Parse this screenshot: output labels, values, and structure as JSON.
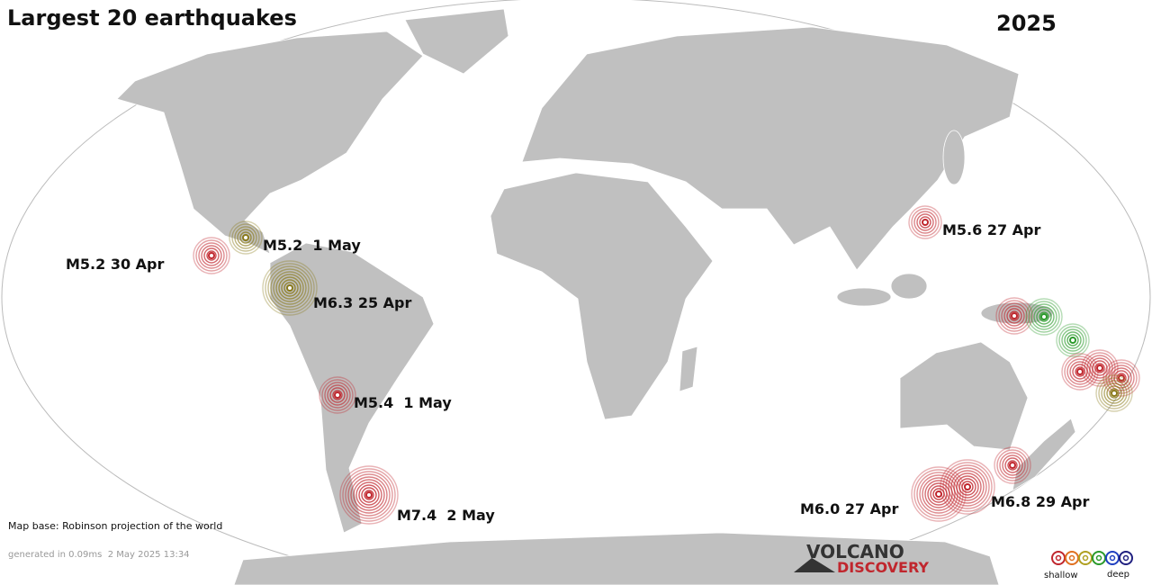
{
  "title": "Largest 20 earthquakes",
  "year": "2025",
  "quakes": [
    {
      "label": "M5.2 30 Apr"
    },
    {
      "label": "M5.2  1 May"
    },
    {
      "label": "M6.3 25 Apr"
    },
    {
      "label": "M5.4  1 May"
    },
    {
      "label": "M7.4  2 May"
    },
    {
      "label": "M5.6 27 Apr"
    },
    {
      "label": "M6.0 27 Apr"
    },
    {
      "label": "M6.8 29 Apr"
    }
  ],
  "map_base": "Map base: Robinson projection of the world",
  "generated": "generated in 0.09ms  2 May 2025 13:34",
  "logo": {
    "line1": "VOLCANO",
    "line2": "DISCOVERY"
  },
  "legend": {
    "shallow": "shallow",
    "deep": "deep"
  }
}
